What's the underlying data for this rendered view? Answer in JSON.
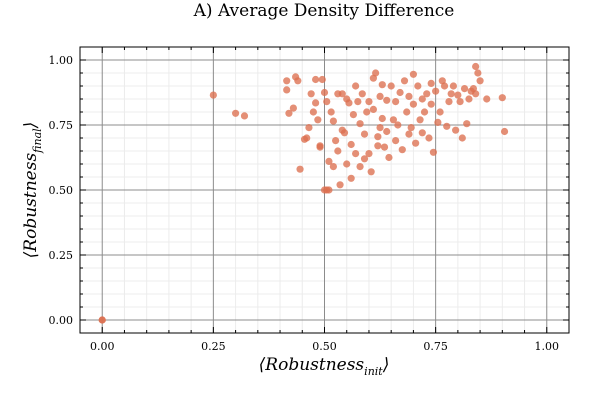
{
  "chart_data": {
    "type": "scatter",
    "title": "A) Average Density Difference",
    "xlabel": {
      "open": "⟨",
      "main": "Robustness",
      "sub": "init",
      "close": "⟩"
    },
    "ylabel": {
      "open": "⟨",
      "main": "Robustness",
      "sub": "final",
      "close": "⟩"
    },
    "xlim": [
      -0.05,
      1.05
    ],
    "ylim": [
      -0.05,
      1.05
    ],
    "xticks": [
      0.0,
      0.25,
      0.5,
      0.75,
      1.0
    ],
    "xtick_labels": [
      "0.00",
      "0.25",
      "0.50",
      "0.75",
      "1.00"
    ],
    "yticks": [
      0.0,
      0.25,
      0.5,
      0.75,
      1.0
    ],
    "ytick_labels": [
      "0.00",
      "0.25",
      "0.50",
      "0.75",
      "1.00"
    ],
    "grid": true,
    "legend": false,
    "marker_color": "#dc7050",
    "points": [
      [
        0.0,
        0.0
      ],
      [
        0.0,
        0.0
      ],
      [
        0.25,
        0.865
      ],
      [
        0.3,
        0.795
      ],
      [
        0.32,
        0.785
      ],
      [
        0.415,
        0.92
      ],
      [
        0.415,
        0.885
      ],
      [
        0.42,
        0.795
      ],
      [
        0.43,
        0.815
      ],
      [
        0.435,
        0.935
      ],
      [
        0.44,
        0.92
      ],
      [
        0.445,
        0.58
      ],
      [
        0.455,
        0.695
      ],
      [
        0.46,
        0.7
      ],
      [
        0.465,
        0.74
      ],
      [
        0.47,
        0.87
      ],
      [
        0.475,
        0.8
      ],
      [
        0.48,
        0.925
      ],
      [
        0.48,
        0.835
      ],
      [
        0.485,
        0.77
      ],
      [
        0.49,
        0.665
      ],
      [
        0.49,
        0.67
      ],
      [
        0.495,
        0.925
      ],
      [
        0.5,
        0.5
      ],
      [
        0.505,
        0.5
      ],
      [
        0.51,
        0.5
      ],
      [
        0.5,
        0.875
      ],
      [
        0.505,
        0.84
      ],
      [
        0.51,
        0.61
      ],
      [
        0.515,
        0.8
      ],
      [
        0.52,
        0.765
      ],
      [
        0.52,
        0.59
      ],
      [
        0.525,
        0.69
      ],
      [
        0.53,
        0.87
      ],
      [
        0.53,
        0.65
      ],
      [
        0.535,
        0.52
      ],
      [
        0.54,
        0.73
      ],
      [
        0.54,
        0.87
      ],
      [
        0.545,
        0.72
      ],
      [
        0.55,
        0.6
      ],
      [
        0.55,
        0.85
      ],
      [
        0.555,
        0.835
      ],
      [
        0.56,
        0.675
      ],
      [
        0.56,
        0.545
      ],
      [
        0.565,
        0.79
      ],
      [
        0.57,
        0.9
      ],
      [
        0.57,
        0.64
      ],
      [
        0.575,
        0.84
      ],
      [
        0.58,
        0.59
      ],
      [
        0.58,
        0.755
      ],
      [
        0.585,
        0.87
      ],
      [
        0.59,
        0.715
      ],
      [
        0.59,
        0.62
      ],
      [
        0.595,
        0.8
      ],
      [
        0.6,
        0.84
      ],
      [
        0.6,
        0.64
      ],
      [
        0.605,
        0.57
      ],
      [
        0.61,
        0.93
      ],
      [
        0.61,
        0.81
      ],
      [
        0.615,
        0.95
      ],
      [
        0.62,
        0.705
      ],
      [
        0.62,
        0.67
      ],
      [
        0.625,
        0.86
      ],
      [
        0.625,
        0.74
      ],
      [
        0.63,
        0.905
      ],
      [
        0.63,
        0.775
      ],
      [
        0.635,
        0.665
      ],
      [
        0.64,
        0.845
      ],
      [
        0.64,
        0.725
      ],
      [
        0.645,
        0.625
      ],
      [
        0.65,
        0.9
      ],
      [
        0.655,
        0.77
      ],
      [
        0.66,
        0.69
      ],
      [
        0.66,
        0.84
      ],
      [
        0.665,
        0.75
      ],
      [
        0.67,
        0.875
      ],
      [
        0.675,
        0.655
      ],
      [
        0.68,
        0.92
      ],
      [
        0.685,
        0.8
      ],
      [
        0.69,
        0.715
      ],
      [
        0.69,
        0.86
      ],
      [
        0.695,
        0.74
      ],
      [
        0.7,
        0.945
      ],
      [
        0.7,
        0.83
      ],
      [
        0.705,
        0.68
      ],
      [
        0.71,
        0.9
      ],
      [
        0.715,
        0.77
      ],
      [
        0.72,
        0.85
      ],
      [
        0.72,
        0.72
      ],
      [
        0.725,
        0.8
      ],
      [
        0.73,
        0.87
      ],
      [
        0.735,
        0.7
      ],
      [
        0.74,
        0.91
      ],
      [
        0.74,
        0.83
      ],
      [
        0.745,
        0.645
      ],
      [
        0.75,
        0.88
      ],
      [
        0.755,
        0.76
      ],
      [
        0.76,
        0.8
      ],
      [
        0.765,
        0.92
      ],
      [
        0.77,
        0.9
      ],
      [
        0.775,
        0.745
      ],
      [
        0.78,
        0.84
      ],
      [
        0.785,
        0.87
      ],
      [
        0.79,
        0.9
      ],
      [
        0.795,
        0.73
      ],
      [
        0.8,
        0.865
      ],
      [
        0.805,
        0.84
      ],
      [
        0.81,
        0.7
      ],
      [
        0.815,
        0.89
      ],
      [
        0.82,
        0.755
      ],
      [
        0.825,
        0.85
      ],
      [
        0.83,
        0.88
      ],
      [
        0.835,
        0.89
      ],
      [
        0.84,
        0.975
      ],
      [
        0.84,
        0.87
      ],
      [
        0.845,
        0.95
      ],
      [
        0.85,
        0.92
      ],
      [
        0.865,
        0.85
      ],
      [
        0.9,
        0.855
      ],
      [
        0.905,
        0.725
      ]
    ]
  }
}
